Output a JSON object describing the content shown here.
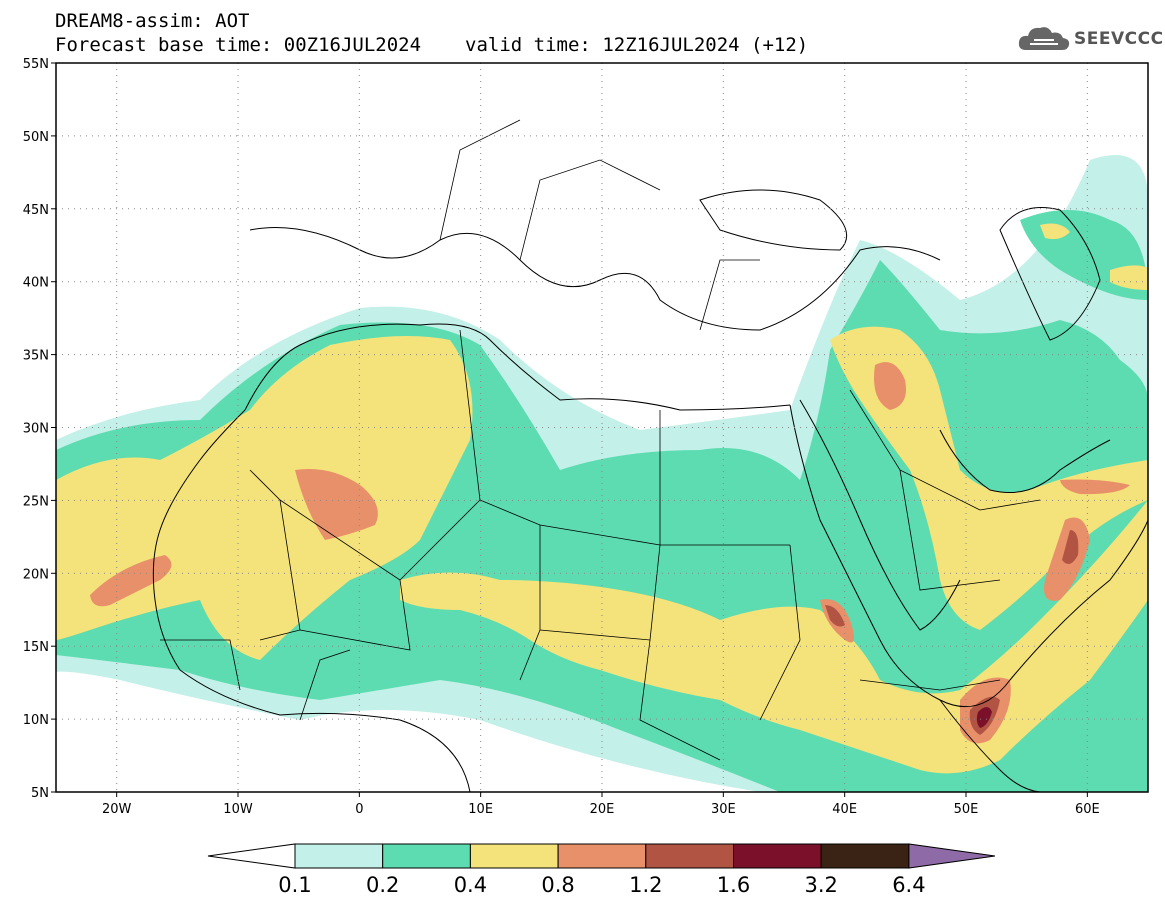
{
  "title": {
    "line1": "DREAM8-assim: AOT",
    "base_time": "Forecast base time: 00Z16JUL2024",
    "valid_time": "valid time: 12Z16JUL2024 (+12)"
  },
  "logo": {
    "text": "SEEVCCC",
    "icon": "cloud-icon",
    "color": "#555555"
  },
  "map": {
    "lon_range": [
      -25,
      65
    ],
    "lat_range": [
      5,
      55
    ],
    "lat_ticks": [
      {
        "value": 55,
        "label": "55N"
      },
      {
        "value": 50,
        "label": "50N"
      },
      {
        "value": 45,
        "label": "45N"
      },
      {
        "value": 40,
        "label": "40N"
      },
      {
        "value": 35,
        "label": "35N"
      },
      {
        "value": 30,
        "label": "30N"
      },
      {
        "value": 25,
        "label": "25N"
      },
      {
        "value": 20,
        "label": "20N"
      },
      {
        "value": 15,
        "label": "15N"
      },
      {
        "value": 10,
        "label": "10N"
      },
      {
        "value": 5,
        "label": "5N"
      }
    ],
    "lon_ticks": [
      {
        "value": -20,
        "label": "20W"
      },
      {
        "value": -10,
        "label": "10W"
      },
      {
        "value": 0,
        "label": "0"
      },
      {
        "value": 10,
        "label": "10E"
      },
      {
        "value": 20,
        "label": "20E"
      },
      {
        "value": 30,
        "label": "30E"
      },
      {
        "value": 40,
        "label": "40E"
      },
      {
        "value": 50,
        "label": "50E"
      },
      {
        "value": 60,
        "label": "60E"
      }
    ],
    "gridlines": "dotted"
  },
  "colorbar": {
    "levels": [
      "0.1",
      "0.2",
      "0.4",
      "0.8",
      "1.2",
      "1.6",
      "3.2",
      "6.4"
    ],
    "colors": [
      "#ffffff",
      "#c3f0e8",
      "#5cdcb0",
      "#f4e27a",
      "#e8906a",
      "#b25444",
      "#7a1029",
      "#3a2314",
      "#8e6aa6"
    ]
  }
}
